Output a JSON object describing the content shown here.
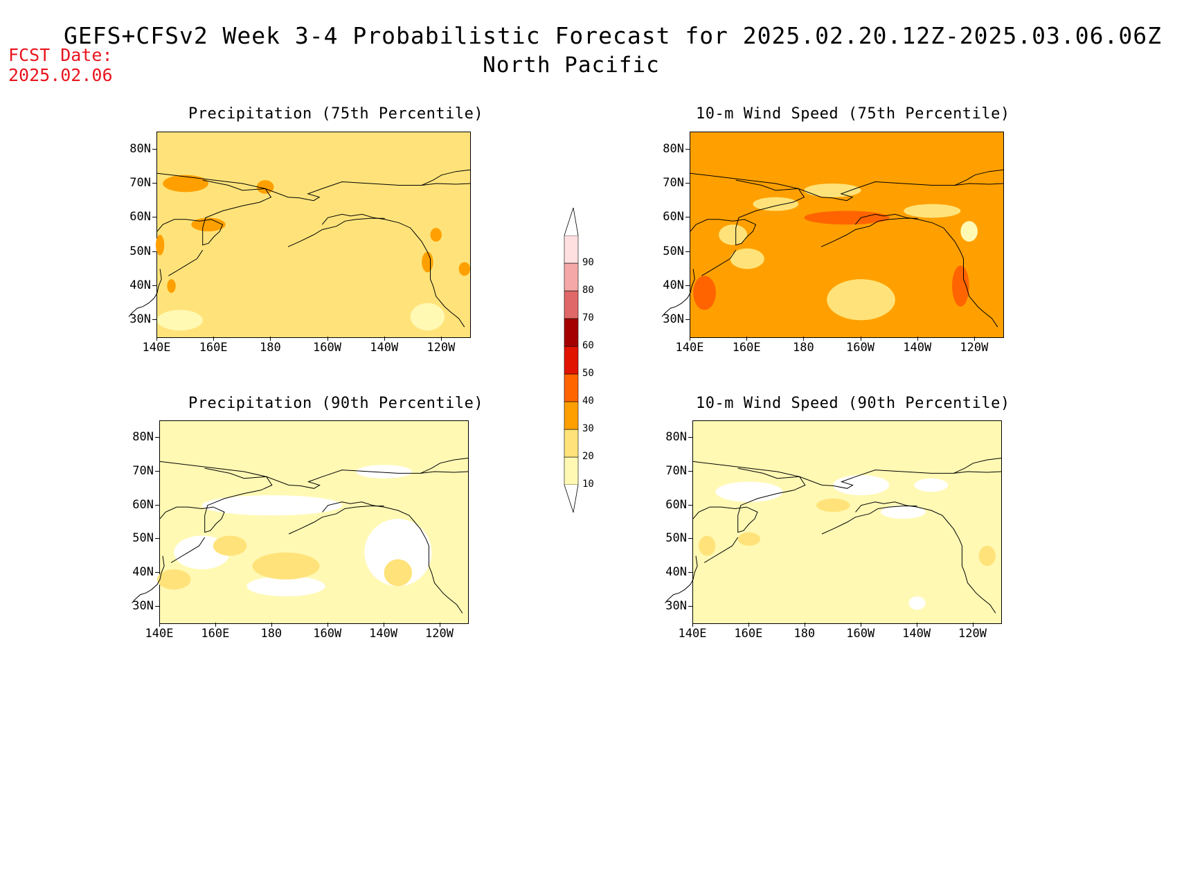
{
  "title": {
    "line1": "GEFS+CFSv2 Week 3-4 Probabilistic Forecast for 2025.02.20.12Z-2025.03.06.06Z",
    "line2": "North Pacific"
  },
  "fcst_date": {
    "label": "FCST Date:",
    "value": "2025.02.06"
  },
  "panels": [
    {
      "title": "Precipitation (75th Percentile)",
      "dominant": "20-30"
    },
    {
      "title": "10-m Wind Speed (75th Percentile)",
      "dominant": "30-40"
    },
    {
      "title": "Precipitation (90th Percentile)",
      "dominant": "10-20"
    },
    {
      "title": "10-m Wind Speed (90th Percentile)",
      "dominant": "10-20"
    }
  ],
  "axes": {
    "lat_ticks": [
      "80N",
      "70N",
      "60N",
      "50N",
      "40N",
      "30N"
    ],
    "lon_ticks": [
      "140E",
      "160E",
      "180",
      "160W",
      "140W",
      "120W"
    ],
    "lat_range": [
      25,
      85
    ],
    "lon_range": [
      140,
      250
    ]
  },
  "colorbar": {
    "levels": [
      "10",
      "20",
      "30",
      "40",
      "50",
      "60",
      "70",
      "80",
      "90"
    ],
    "colors": [
      "#fff9b4",
      "#ffe37a",
      "#ffa000",
      "#ff6400",
      "#e11400",
      "#a50000",
      "#e06868",
      "#f4a8a8",
      "#ffe0e0"
    ]
  }
}
